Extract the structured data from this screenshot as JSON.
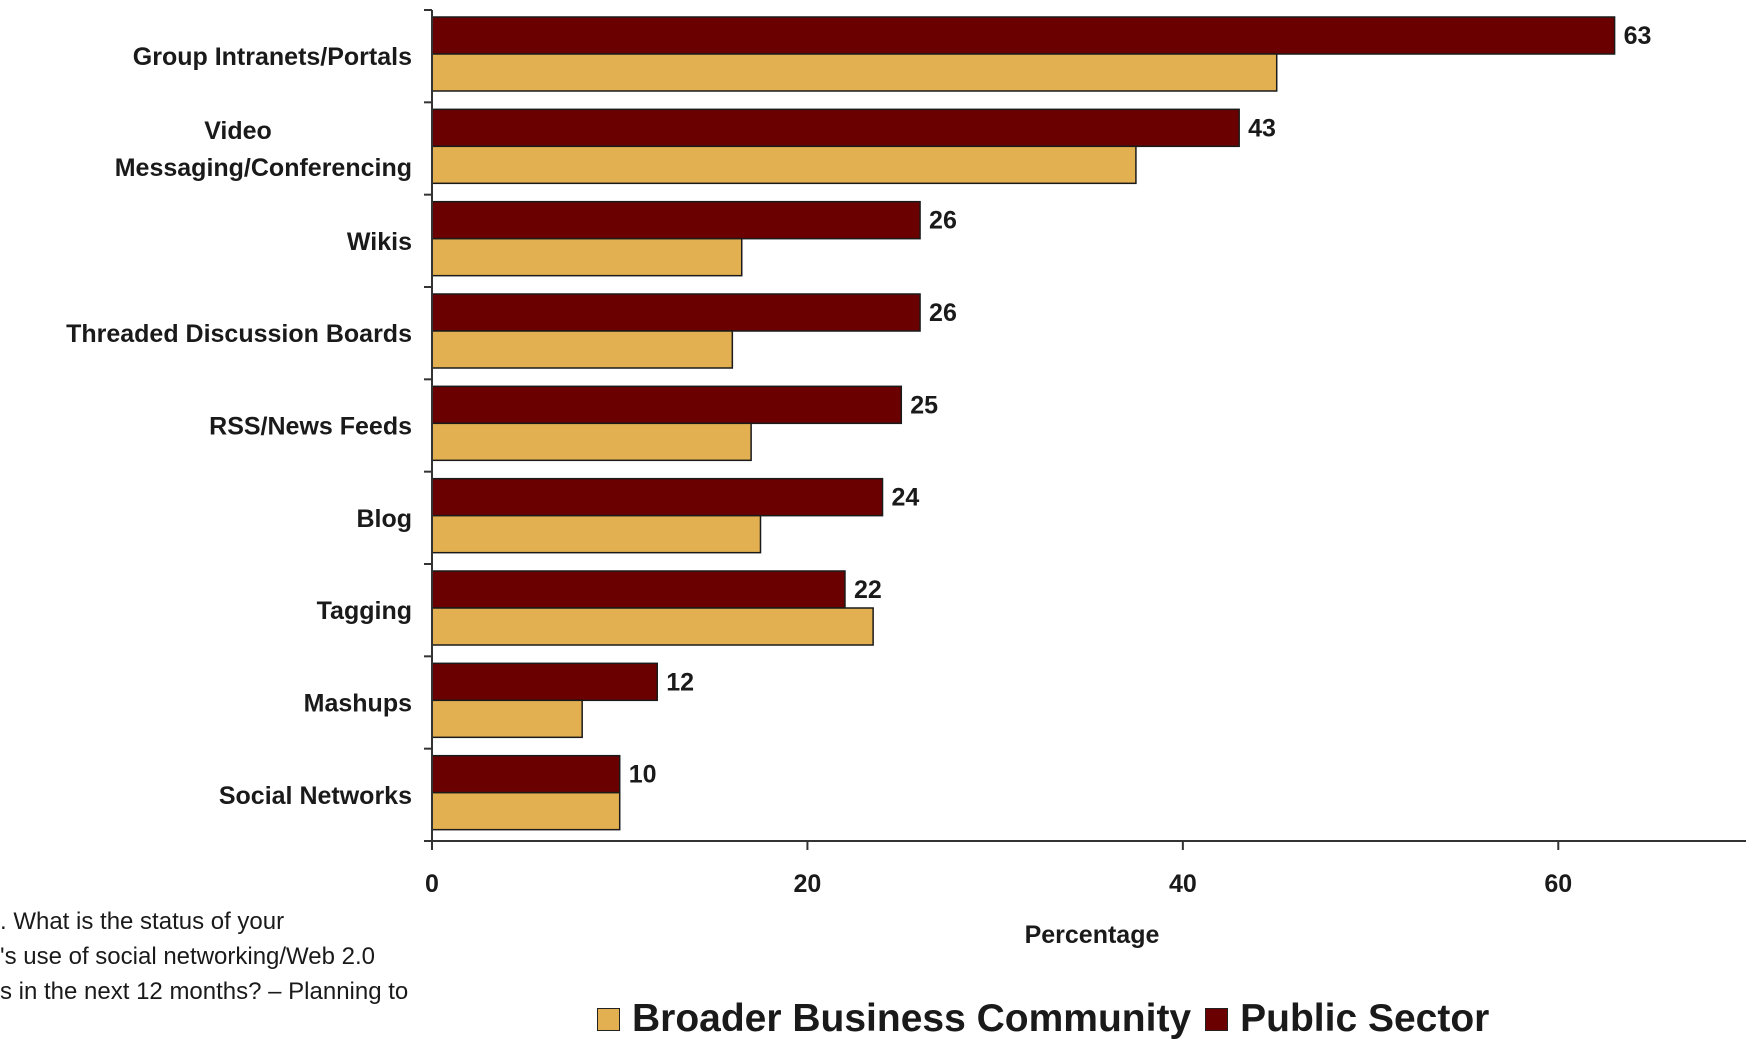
{
  "chart_data": {
    "type": "bar",
    "orientation": "horizontal",
    "categories": [
      [
        "Group Intranets/Portals"
      ],
      [
        "Video",
        "Messaging/Conferencing"
      ],
      [
        "Wikis"
      ],
      [
        "Threaded Discussion Boards"
      ],
      [
        "RSS/News Feeds"
      ],
      [
        "Blog"
      ],
      [
        "Tagging"
      ],
      [
        "Mashups"
      ],
      [
        "Social Networks"
      ]
    ],
    "series": [
      {
        "name": "Public Sector",
        "color": "#6b0000",
        "values": [
          63,
          43,
          26,
          26,
          25,
          24,
          22,
          12,
          10
        ],
        "labels": [
          "63",
          "43",
          "26",
          "26",
          "25",
          "24",
          "22",
          "12",
          "10"
        ]
      },
      {
        "name": "Broader Business Community",
        "color": "#e2b050",
        "values": [
          45,
          37.5,
          16.5,
          16,
          17,
          17.5,
          23.5,
          8,
          10
        ]
      }
    ],
    "xlim": [
      0,
      70
    ],
    "xticks": [
      "0",
      "20",
      "40",
      "60"
    ],
    "xtick_values": [
      0,
      20,
      40,
      60
    ],
    "xlabel": "Percentage",
    "legend_position": "bottom",
    "grid": false
  },
  "footnote": [
    ". What is the status of your",
    "'s use of social networking/Web 2.0",
    "s in the next 12 months? – Planning to"
  ],
  "legend": {
    "items": [
      {
        "label": "Broader Business Community",
        "color": "#e2b050"
      },
      {
        "label": "Public Sector",
        "color": "#6b0000"
      }
    ]
  }
}
